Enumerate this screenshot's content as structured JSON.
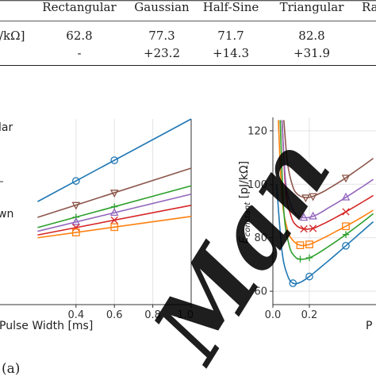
{
  "table": {
    "header": [
      "Rectangular",
      "Gaussian",
      "Half-Sine",
      "Triangular",
      "Ra"
    ],
    "row_label_fragment": "/kΩ]",
    "rows": [
      [
        "62.8",
        "77.3",
        "71.7",
        "82.8"
      ],
      [
        "-",
        "+23.2",
        "+14.3",
        "+31.9"
      ]
    ]
  },
  "caption_a": "(a)",
  "watermark": "Man",
  "legend_fragments": [
    "lar",
    "wn"
  ],
  "colors": {
    "blue": "#1f77b4",
    "orange": "#ff7f0e",
    "green": "#2ca02c",
    "red": "#d62728",
    "purple": "#9467bd",
    "brown": "#8c564b"
  },
  "chart_data": [
    {
      "type": "line",
      "xlabel": "Pulse Width [ms]",
      "ylabel": "",
      "xlim": [
        0.0,
        1.0
      ],
      "ylim": [
        0,
        1
      ],
      "x_ticks": [
        "0.4",
        "0.6",
        "0.8",
        "1.0"
      ],
      "grid": true,
      "series": [
        {
          "color": "blue",
          "marker": "circle",
          "x": [
            0.2,
            1.0
          ],
          "y": [
            0.555,
            1.0
          ]
        },
        {
          "color": "brown",
          "marker": "triangle-down",
          "x": [
            0.2,
            1.0
          ],
          "y": [
            0.47,
            0.735
          ]
        },
        {
          "color": "green",
          "marker": "plus",
          "x": [
            0.2,
            1.0
          ],
          "y": [
            0.415,
            0.64
          ]
        },
        {
          "color": "purple",
          "marker": "triangle-up",
          "x": [
            0.2,
            1.0
          ],
          "y": [
            0.395,
            0.595
          ]
        },
        {
          "color": "red",
          "marker": "x",
          "x": [
            0.2,
            1.0
          ],
          "y": [
            0.375,
            0.535
          ]
        },
        {
          "color": "orange",
          "marker": "square",
          "x": [
            0.2,
            1.0
          ],
          "y": [
            0.36,
            0.475
          ]
        }
      ]
    },
    {
      "type": "line",
      "xlabel": "P",
      "ylabel": "E_constant [pJ/kΩ]",
      "xlim": [
        0.0,
        0.6
      ],
      "ylim": [
        55,
        125
      ],
      "x_ticks": [
        "0.0",
        "0.2"
      ],
      "y_ticks": [
        "60",
        "80",
        "100",
        "120"
      ],
      "grid": true,
      "series": [
        {
          "color": "blue",
          "marker": "circle",
          "x": [
            0.02,
            0.05,
            0.08,
            0.11,
            0.15,
            0.2,
            0.25,
            0.3,
            0.35,
            0.4,
            0.45,
            0.5,
            0.55
          ],
          "y": [
            100,
            75,
            66,
            63,
            63.3,
            65.5,
            68.3,
            71.1,
            74,
            77,
            80,
            83,
            86
          ]
        },
        {
          "color": "orange",
          "marker": "square",
          "x": [
            0.03,
            0.05,
            0.08,
            0.11,
            0.15,
            0.2,
            0.25,
            0.3,
            0.35,
            0.4,
            0.45,
            0.5,
            0.55
          ],
          "y": [
            124,
            95,
            83,
            79,
            77.2,
            77.5,
            79,
            80.7,
            82.5,
            84.3,
            86.2,
            88.2,
            90.3
          ]
        },
        {
          "color": "green",
          "marker": "plus",
          "x": [
            0.04,
            0.06,
            0.09,
            0.12,
            0.15,
            0.2,
            0.25,
            0.3,
            0.35,
            0.4,
            0.45,
            0.5,
            0.55
          ],
          "y": [
            124,
            90,
            77,
            73,
            72,
            72.5,
            74.3,
            76.5,
            78.8,
            81.2,
            83.7,
            86.3,
            89
          ]
        },
        {
          "color": "red",
          "marker": "x",
          "x": [
            0.05,
            0.07,
            0.1,
            0.13,
            0.17,
            0.22,
            0.27,
            0.3,
            0.35,
            0.4,
            0.45,
            0.5,
            0.55
          ],
          "y": [
            124,
            98,
            88,
            84.5,
            83.3,
            83.5,
            85,
            86,
            87.8,
            89.7,
            91.7,
            93.7,
            95.8
          ]
        },
        {
          "color": "purple",
          "marker": "triangle-up",
          "x": [
            0.05,
            0.07,
            0.1,
            0.13,
            0.17,
            0.22,
            0.27,
            0.3,
            0.35,
            0.4,
            0.45,
            0.5,
            0.55
          ],
          "y": [
            124,
            101,
            92,
            88.7,
            87.5,
            88,
            89.7,
            91,
            93,
            95.1,
            97.3,
            99.5,
            101.8
          ]
        },
        {
          "color": "brown",
          "marker": "triangle-down",
          "x": [
            0.06,
            0.08,
            0.11,
            0.14,
            0.18,
            0.22,
            0.27,
            0.3,
            0.35,
            0.4,
            0.45,
            0.5,
            0.55
          ],
          "y": [
            124,
            108,
            99,
            96,
            95,
            95.5,
            97,
            98.2,
            100.2,
            102.4,
            104.8,
            107.2,
            109.7
          ]
        }
      ]
    }
  ]
}
